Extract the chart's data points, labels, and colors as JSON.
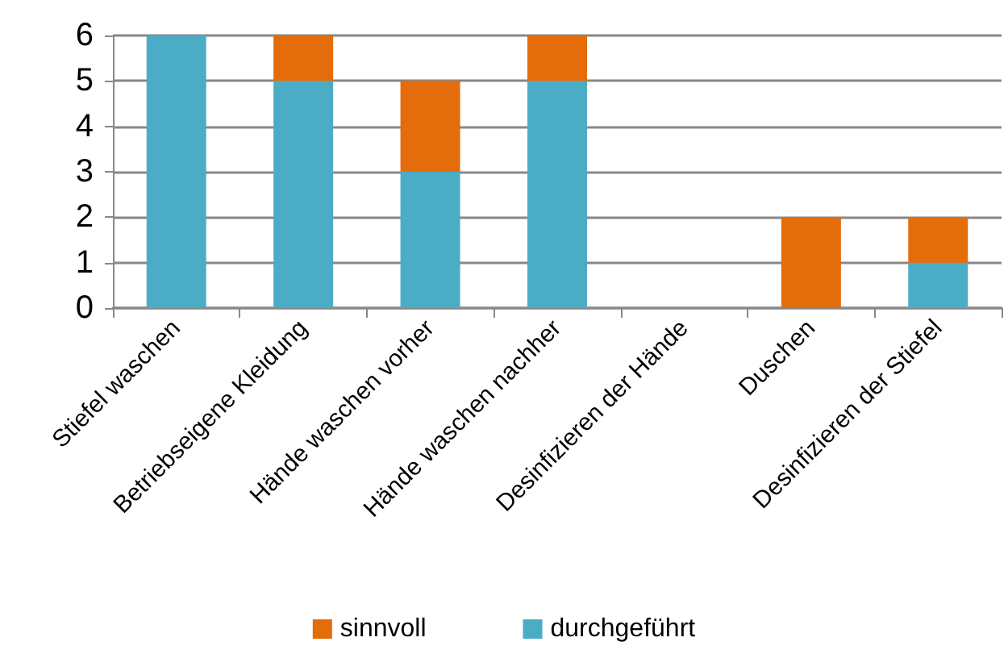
{
  "chart_data": {
    "type": "bar",
    "stacked": true,
    "categories": [
      "Stiefel waschen",
      "Betriebseigene Kleidung",
      "Hände waschen vorher",
      "Hände waschen nachher",
      "Desinfizieren der Hände",
      "Duschen",
      "Desinfizieren der Stiefel"
    ],
    "series": [
      {
        "name": "durchgeführt",
        "color": "#4bacc6",
        "values": [
          6,
          5,
          3,
          5,
          0,
          0,
          1
        ]
      },
      {
        "name": "sinnvoll",
        "color": "#e46c0a",
        "values": [
          0,
          1,
          2,
          1,
          0,
          2,
          1
        ]
      }
    ],
    "ylim": [
      0,
      6
    ],
    "yticks": [
      0,
      1,
      2,
      3,
      4,
      5,
      6
    ],
    "grid": "y",
    "legend": "bottom"
  }
}
